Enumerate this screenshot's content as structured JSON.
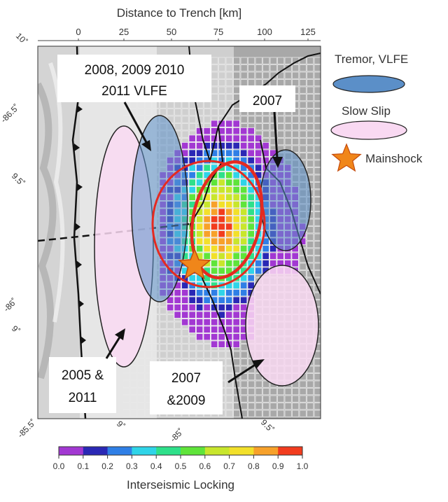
{
  "map": {
    "top_axis_title": "Distance to Trench [km]",
    "top_ticks": [
      "0",
      "25",
      "50",
      "75",
      "100",
      "125"
    ],
    "left_lat_labels": [
      "10˚",
      "-86.5˚",
      "9.5˚",
      "-86˚",
      "9˚",
      "-85.5˚"
    ],
    "bottom_labels": [
      "9˚",
      "-85˚",
      "9.5˚"
    ]
  },
  "callouts": {
    "vlfe_years": [
      "2008, 2009 2010",
      "2011 VLFE"
    ],
    "tremor_2007": "2007",
    "slow_slip_west": [
      "2005 &",
      "2011"
    ],
    "slow_slip_east": [
      "2007",
      "&2009"
    ]
  },
  "legend": {
    "tremor_label": "Tremor, VLFE",
    "slow_slip_label": "Slow Slip",
    "mainshock_label": "Mainshock",
    "tremor_color": "#5b8fc8",
    "slow_slip_color": "#f9d9f2",
    "mainshock_color": "#f0861a"
  },
  "colorbar": {
    "title": "Interseismic Locking",
    "ticks": [
      "0.0",
      "0.1",
      "0.2",
      "0.3",
      "0.4",
      "0.5",
      "0.6",
      "0.7",
      "0.8",
      "0.9",
      "1.0"
    ],
    "colors": [
      "#a238d2",
      "#2a28b5",
      "#2f7fe6",
      "#2fd4e8",
      "#2ee08a",
      "#5fe43a",
      "#c8e62c",
      "#f2e02a",
      "#f7a12a",
      "#f23c1e"
    ]
  }
}
